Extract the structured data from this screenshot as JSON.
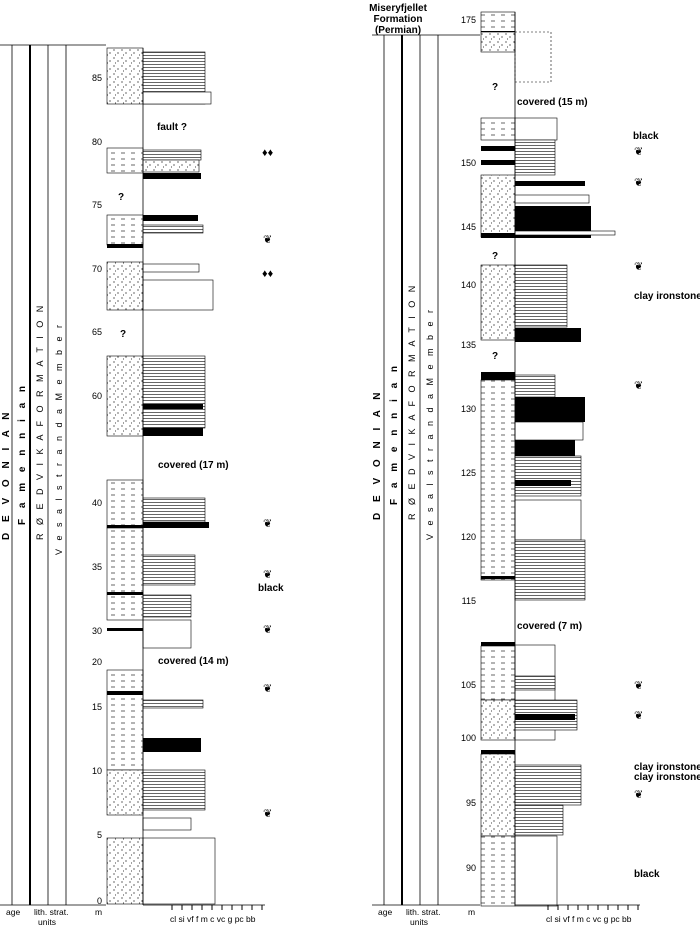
{
  "header_right": {
    "line1": "Miseryfjellet",
    "line2": "Formation",
    "line3": "(Permian)"
  },
  "units": {
    "age": "D E V O N I A N",
    "stage": "F a m e n n i a n",
    "formation": "R Ø E D V I K A   F O R M A T I O N",
    "member": "V e s a l s t r a n d a   M e m b e r"
  },
  "footer": {
    "age": "age",
    "lith": "lith. strat.",
    "lith2": "units",
    "m": "m",
    "grain": "cl si vf  f  m c vc g  pc bb"
  },
  "left_ticks": [
    "0",
    "5",
    "10",
    "15",
    "20",
    "30",
    "35",
    "40",
    "60",
    "65",
    "70",
    "75",
    "80",
    "85"
  ],
  "right_ticks": [
    "90",
    "95",
    "100",
    "105",
    "115",
    "120",
    "125",
    "130",
    "135",
    "140",
    "145",
    "150",
    "175"
  ],
  "annotations_left": {
    "fault": "fault ?",
    "covered17": "covered (17 m)",
    "black": "black",
    "covered14": "covered (14 m)",
    "q1": "?",
    "q2": "?"
  },
  "annotations_right": {
    "covered15": "covered (15 m)",
    "black1": "black",
    "clay1": "clay ironstone",
    "covered7": "covered (7 m)",
    "clay2": "clay ironstone",
    "clay3": "clay ironstone",
    "black2": "black",
    "q1": "?",
    "q2": "?",
    "q3": "?"
  },
  "colors": {
    "ink": "#000000",
    "paper": "#ffffff",
    "grid": "#888888"
  },
  "symbols": [
    "leaf-fossil-icon",
    "bivalve-icon"
  ]
}
